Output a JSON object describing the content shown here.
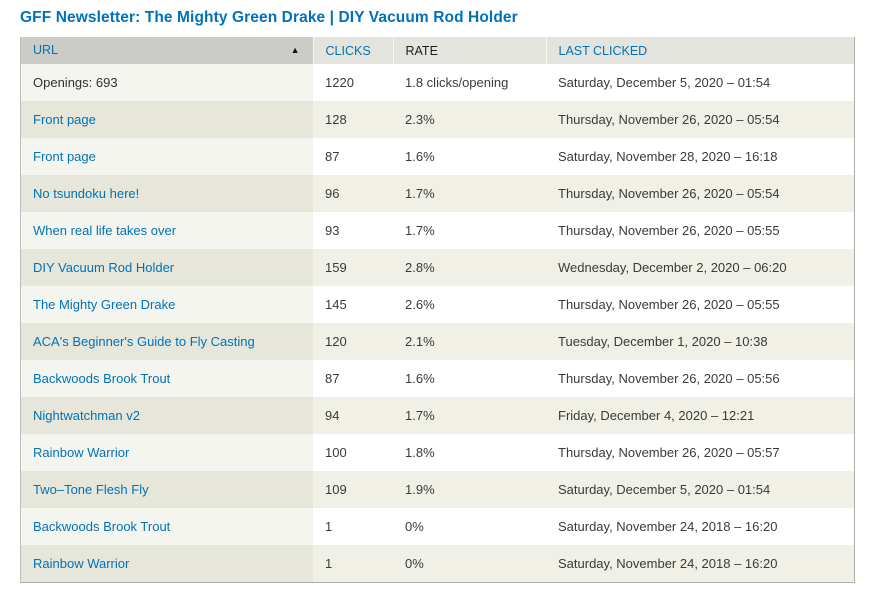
{
  "page_title": "GFF Newsletter: The Mighty Green Drake | DIY Vacuum Rod Holder",
  "colors": {
    "title_blue": "#0072b9",
    "link_blue": "#0173b5",
    "header_bg": "#e4e4df",
    "header_active_bg": "#cbcbc8",
    "row_even_bg": "#f0f0e7",
    "row_even_active_bg": "#e6e6da",
    "row_odd_bg": "#ffffff",
    "row_odd_active_bg": "#f5f5f0"
  },
  "table": {
    "sort_icon": "▲",
    "sorted_column": "URL",
    "sort_direction": "ascending",
    "columns": [
      {
        "label": "URL",
        "is_link": true,
        "sorted": true
      },
      {
        "label": "CLICKS",
        "is_link": true,
        "sorted": false
      },
      {
        "label": "RATE",
        "is_link": false,
        "sorted": false
      },
      {
        "label": "LAST CLICKED",
        "is_link": true,
        "sorted": false
      }
    ],
    "rows": [
      {
        "url": "Openings: 693",
        "url_is_link": false,
        "clicks": "1220",
        "rate": "1.8 clicks/opening",
        "last_clicked": "Saturday, December 5, 2020 – 01:54"
      },
      {
        "url": "Front page",
        "url_is_link": true,
        "clicks": "128",
        "rate": "2.3%",
        "last_clicked": "Thursday, November 26, 2020 – 05:54"
      },
      {
        "url": "Front page",
        "url_is_link": true,
        "clicks": "87",
        "rate": "1.6%",
        "last_clicked": "Saturday, November 28, 2020 – 16:18"
      },
      {
        "url": "No tsundoku here!",
        "url_is_link": true,
        "clicks": "96",
        "rate": "1.7%",
        "last_clicked": "Thursday, November 26, 2020 – 05:54"
      },
      {
        "url": "When real life takes over",
        "url_is_link": true,
        "clicks": "93",
        "rate": "1.7%",
        "last_clicked": "Thursday, November 26, 2020 – 05:55"
      },
      {
        "url": "DIY Vacuum Rod Holder",
        "url_is_link": true,
        "clicks": "159",
        "rate": "2.8%",
        "last_clicked": "Wednesday, December 2, 2020 – 06:20"
      },
      {
        "url": "The Mighty Green Drake",
        "url_is_link": true,
        "clicks": "145",
        "rate": "2.6%",
        "last_clicked": "Thursday, November 26, 2020 – 05:55"
      },
      {
        "url": "ACA's Beginner's Guide to Fly Casting",
        "url_is_link": true,
        "clicks": "120",
        "rate": "2.1%",
        "last_clicked": "Tuesday, December 1, 2020 – 10:38"
      },
      {
        "url": "Backwoods Brook Trout",
        "url_is_link": true,
        "clicks": "87",
        "rate": "1.6%",
        "last_clicked": "Thursday, November 26, 2020 – 05:56"
      },
      {
        "url": "Nightwatchman v2",
        "url_is_link": true,
        "clicks": "94",
        "rate": "1.7%",
        "last_clicked": "Friday, December 4, 2020 – 12:21"
      },
      {
        "url": "Rainbow Warrior",
        "url_is_link": true,
        "clicks": "100",
        "rate": "1.8%",
        "last_clicked": "Thursday, November 26, 2020 – 05:57"
      },
      {
        "url": "Two–Tone Flesh Fly",
        "url_is_link": true,
        "clicks": "109",
        "rate": "1.9%",
        "last_clicked": "Saturday, December 5, 2020 – 01:54"
      },
      {
        "url": "Backwoods Brook Trout",
        "url_is_link": true,
        "clicks": "1",
        "rate": "0%",
        "last_clicked": "Saturday, November 24, 2018 – 16:20"
      },
      {
        "url": "Rainbow Warrior",
        "url_is_link": true,
        "clicks": "1",
        "rate": "0%",
        "last_clicked": "Saturday, November 24, 2018 – 16:20"
      }
    ]
  }
}
